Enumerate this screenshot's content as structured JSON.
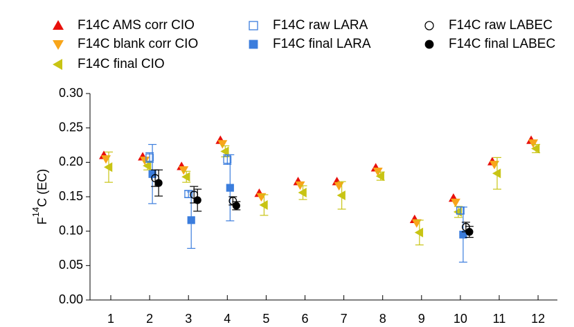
{
  "chart_data": {
    "type": "scatter",
    "categories": [
      "1",
      "2",
      "3",
      "4",
      "5",
      "6",
      "7",
      "8",
      "9",
      "10",
      "11",
      "12"
    ],
    "y_label": {
      "base": "F",
      "superscript": "14",
      "rest": "C (EC)"
    },
    "ylim": [
      0,
      0.3
    ],
    "yticks": [
      {
        "value": 0,
        "label": "0.00"
      },
      {
        "value": 0.05,
        "label": "0.05"
      },
      {
        "value": 0.1,
        "label": "0.10"
      },
      {
        "value": 0.15,
        "label": "0.15"
      },
      {
        "value": 0.2,
        "label": "0.20"
      },
      {
        "value": 0.25,
        "label": "0.25"
      },
      {
        "value": 0.3,
        "label": "0.30"
      }
    ],
    "series": [
      {
        "name": "F14C AMS corr CIO",
        "color": "#e8100b",
        "marker": "triangle-up",
        "values": [
          0.21,
          0.208,
          0.194,
          0.232,
          0.155,
          0.172,
          0.172,
          0.192,
          0.117,
          0.148,
          0.201,
          0.232
        ]
      },
      {
        "name": "F14C blank corr CIO",
        "color": "#f8a51a",
        "marker": "triangle-down",
        "values": [
          0.205,
          0.203,
          0.189,
          0.227,
          0.15,
          0.167,
          0.166,
          0.187,
          0.112,
          0.142,
          0.197,
          0.228
        ]
      },
      {
        "name": "F14C final CIO",
        "color": "#c8c414",
        "marker": "triangle-left",
        "values": [
          0.193,
          0.195,
          0.179,
          0.216,
          0.138,
          0.156,
          0.152,
          0.18,
          0.098,
          0.128,
          0.184,
          0.22
        ],
        "errors": [
          0.022,
          0.006,
          0.008,
          0.008,
          0.015,
          0.01,
          0.02,
          0.006,
          0.018,
          0.008,
          0.023,
          0.006
        ]
      },
      {
        "name": "F14C raw LARA",
        "color": "#3b7ddd",
        "marker": "square-open",
        "values": [
          null,
          0.207,
          0.154,
          0.204,
          null,
          null,
          null,
          null,
          null,
          0.13,
          null,
          null
        ],
        "errors": [
          null,
          0.007,
          0.005,
          0.007,
          null,
          null,
          null,
          null,
          null,
          0.005,
          null,
          null
        ]
      },
      {
        "name": "F14C final LARA",
        "color": "#3b7ddd",
        "marker": "square",
        "values": [
          null,
          0.183,
          0.116,
          0.163,
          null,
          null,
          null,
          null,
          null,
          0.095,
          null,
          null
        ],
        "errors": [
          null,
          0.043,
          0.041,
          0.048,
          null,
          null,
          null,
          null,
          null,
          0.04,
          null,
          null
        ]
      },
      {
        "name": "F14C raw LABEC",
        "color": "#000000",
        "marker": "circle-open",
        "values": [
          null,
          0.177,
          0.153,
          0.144,
          null,
          null,
          null,
          null,
          null,
          0.106,
          null,
          null
        ],
        "errors": [
          null,
          0.012,
          0.012,
          0.006,
          null,
          null,
          null,
          null,
          null,
          0.007,
          null,
          null
        ]
      },
      {
        "name": "F14C final LABEC",
        "color": "#000000",
        "marker": "circle",
        "values": [
          null,
          0.17,
          0.145,
          0.137,
          null,
          null,
          null,
          null,
          null,
          0.099,
          null,
          null
        ],
        "errors": [
          null,
          0.019,
          0.016,
          0.006,
          null,
          null,
          null,
          null,
          null,
          0.008,
          null,
          null
        ]
      }
    ]
  }
}
